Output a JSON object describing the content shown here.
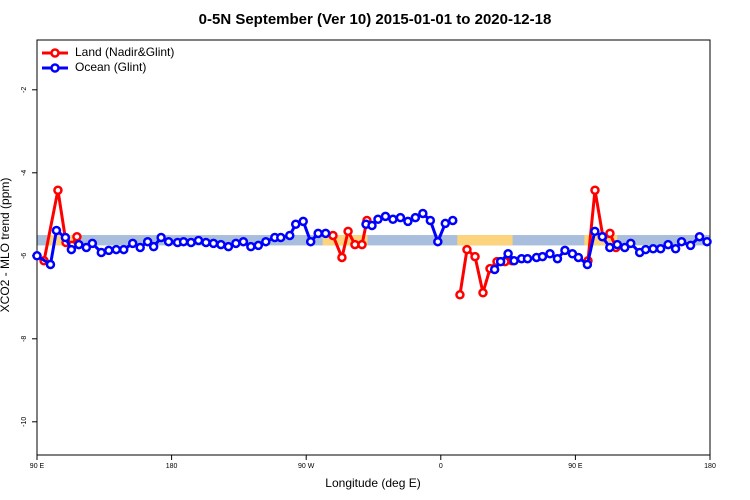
{
  "chart_data": {
    "type": "line",
    "title": "0-5N September (Ver 10)   2015-01-01 to 2020-12-18",
    "x_label": "Longitude (deg E)",
    "y_label": "XCO2 - MLO trend (ppm)",
    "xlim": [
      90,
      540
    ],
    "xticks": [
      {
        "value": 90,
        "label": "90 E"
      },
      {
        "value": 180,
        "label": "180"
      },
      {
        "value": 270,
        "label": "90 W"
      },
      {
        "value": 360,
        "label": "0"
      },
      {
        "value": 450,
        "label": "90 E"
      },
      {
        "value": 540,
        "label": "180"
      }
    ],
    "ylim": [
      -10.8,
      -0.8
    ],
    "yticks": [
      -10,
      -8,
      -6,
      -4,
      -2
    ],
    "legend": "top-left",
    "bands": [
      {
        "color": "#a9bedc",
        "xlim": [
          90,
          540
        ],
        "ylim": [
          -5.75,
          -5.5
        ]
      },
      {
        "color": "#fdd47e",
        "xlim": [
          96.7,
          118.7
        ],
        "ylim": [
          -5.75,
          -5.5
        ]
      },
      {
        "color": "#fdd47e",
        "xlim": [
          281,
          311
        ],
        "ylim": [
          -5.75,
          -5.5
        ]
      },
      {
        "color": "#fdd47e",
        "xlim": [
          371,
          408
        ],
        "ylim": [
          -5.75,
          -5.5
        ]
      },
      {
        "color": "#fdd47e",
        "xlim": [
          456,
          478
        ],
        "ylim": [
          -5.75,
          -5.5
        ]
      }
    ],
    "series": [
      {
        "name": "Land (Nadir&Glint)",
        "color": "#ff0000",
        "x": [
          94.7,
          104,
          109.4,
          113.4,
          116.7,
          200,
          287.9,
          293.9,
          298,
          302.6,
          307.3,
          310.6,
          340,
          372.8,
          377.5,
          382.9,
          388.2,
          392.9,
          397.6,
          402.9,
          407.6,
          430,
          458.4,
          463.1,
          468.4,
          473.1,
          477.1
        ],
        "values": [
          -6.12,
          -4.42,
          -5.68,
          -5.75,
          -5.54,
          null,
          -5.51,
          -6.04,
          -5.41,
          -5.73,
          -5.73,
          -5.15,
          null,
          -6.94,
          -5.85,
          -6.02,
          -6.89,
          -6.31,
          -6.14,
          -6.14,
          -6.12,
          null,
          -6.12,
          -4.42,
          -5.54,
          -5.46,
          -5.8
        ]
      },
      {
        "name": "Ocean (Glint)",
        "color": "#0000ff",
        "x": [
          90,
          99,
          103,
          109,
          113,
          118,
          123,
          127,
          133,
          138,
          143,
          148,
          154,
          159,
          164,
          168,
          173,
          178,
          184,
          188,
          193,
          198,
          203,
          208,
          213,
          218,
          223,
          228,
          233,
          238,
          243,
          249,
          253,
          259,
          263,
          268,
          273,
          278,
          283,
          296,
          310,
          314,
          318,
          323,
          328,
          333,
          338,
          343,
          348,
          353,
          358,
          363,
          368,
          382,
          396,
          400,
          405,
          409,
          414,
          418,
          424,
          428,
          433,
          438,
          443,
          448,
          452,
          458,
          463,
          468,
          473,
          478,
          483,
          487,
          493,
          497,
          502,
          507,
          512,
          517,
          521,
          527,
          533,
          538
        ],
        "values": [
          -6.0,
          -6.21,
          -5.39,
          -5.56,
          -5.85,
          -5.73,
          -5.8,
          -5.7,
          -5.92,
          -5.87,
          -5.85,
          -5.85,
          -5.7,
          -5.8,
          -5.66,
          -5.78,
          -5.56,
          -5.66,
          -5.68,
          -5.66,
          -5.68,
          -5.63,
          -5.68,
          -5.7,
          -5.73,
          -5.78,
          -5.7,
          -5.66,
          -5.78,
          -5.75,
          -5.66,
          -5.56,
          -5.56,
          -5.51,
          -5.24,
          -5.17,
          -5.66,
          -5.46,
          -5.46,
          null,
          -5.24,
          -5.27,
          -5.12,
          -5.05,
          -5.12,
          -5.08,
          -5.17,
          -5.08,
          -4.98,
          -5.15,
          -5.66,
          -5.22,
          -5.15,
          null,
          -6.33,
          -6.14,
          -5.95,
          -6.12,
          -6.07,
          -6.07,
          -6.04,
          -6.02,
          -5.95,
          -6.07,
          -5.87,
          -5.95,
          -6.04,
          -6.21,
          -5.41,
          -5.54,
          -5.8,
          -5.73,
          -5.8,
          -5.7,
          -5.92,
          -5.85,
          -5.83,
          -5.83,
          -5.73,
          -5.83,
          -5.66,
          -5.75,
          -5.54,
          -5.66
        ]
      }
    ]
  }
}
